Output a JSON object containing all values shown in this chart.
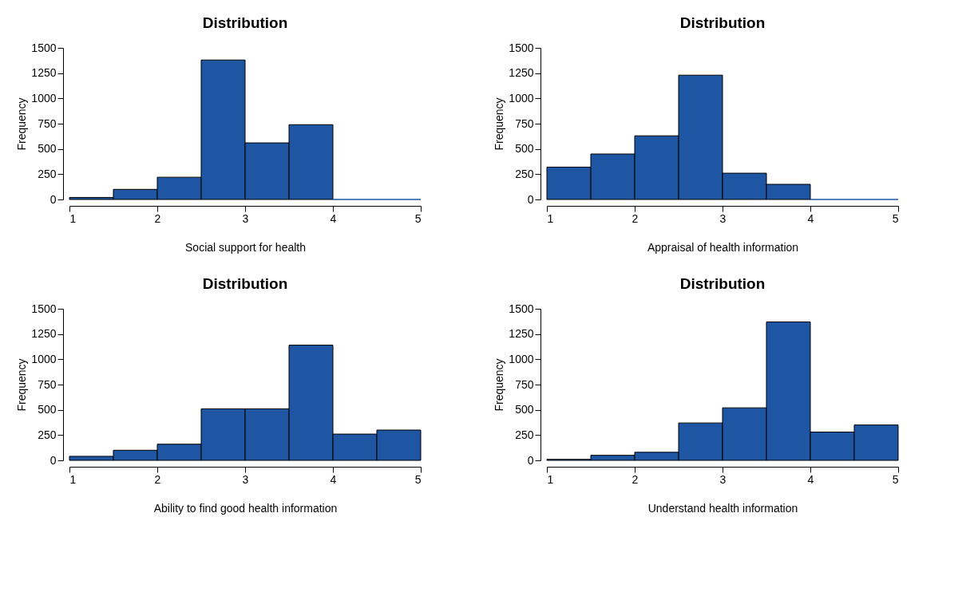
{
  "chart_data": [
    {
      "type": "histogram",
      "title": "Distribution",
      "xlabel": "Social support for health",
      "ylabel": "Frequency",
      "bins": [
        1,
        1.5,
        2,
        2.5,
        3,
        3.5,
        4,
        4.5,
        5
      ],
      "values": [
        20,
        100,
        220,
        1380,
        560,
        740,
        0,
        0
      ],
      "color": "#1f56a3",
      "xlim": [
        1,
        5
      ],
      "xticks": [
        1,
        2,
        3,
        4,
        5
      ],
      "ylim": [
        0,
        1500
      ],
      "yticks": [
        0,
        250,
        500,
        750,
        1000,
        1250,
        1500
      ]
    },
    {
      "type": "histogram",
      "title": "Distribution",
      "xlabel": "Appraisal of health information",
      "ylabel": "Frequency",
      "bins": [
        1,
        1.5,
        2,
        2.5,
        3,
        3.5,
        4,
        4.5,
        5
      ],
      "values": [
        320,
        450,
        630,
        1230,
        260,
        150,
        0,
        0
      ],
      "color": "#1f56a3",
      "xlim": [
        1,
        5
      ],
      "xticks": [
        1,
        2,
        3,
        4,
        5
      ],
      "ylim": [
        0,
        1500
      ],
      "yticks": [
        0,
        250,
        500,
        750,
        1000,
        1250,
        1500
      ]
    },
    {
      "type": "histogram",
      "title": "Distribution",
      "xlabel": "Ability to find good health information",
      "ylabel": "Frequency",
      "bins": [
        1,
        1.5,
        2,
        2.5,
        3,
        3.5,
        4,
        4.5,
        5
      ],
      "values": [
        40,
        100,
        160,
        510,
        510,
        1140,
        260,
        300
      ],
      "color": "#1f56a3",
      "xlim": [
        1,
        5
      ],
      "xticks": [
        1,
        2,
        3,
        4,
        5
      ],
      "ylim": [
        0,
        1500
      ],
      "yticks": [
        0,
        250,
        500,
        750,
        1000,
        1250,
        1500
      ]
    },
    {
      "type": "histogram",
      "title": "Distribution",
      "xlabel": "Understand health information",
      "ylabel": "Frequency",
      "bins": [
        1,
        1.5,
        2,
        2.5,
        3,
        3.5,
        4,
        4.5,
        5
      ],
      "values": [
        10,
        50,
        80,
        370,
        520,
        1370,
        280,
        350
      ],
      "color": "#1f56a3",
      "xlim": [
        1,
        5
      ],
      "xticks": [
        1,
        2,
        3,
        4,
        5
      ],
      "ylim": [
        0,
        1500
      ],
      "yticks": [
        0,
        250,
        500,
        750,
        1000,
        1250,
        1500
      ]
    }
  ]
}
